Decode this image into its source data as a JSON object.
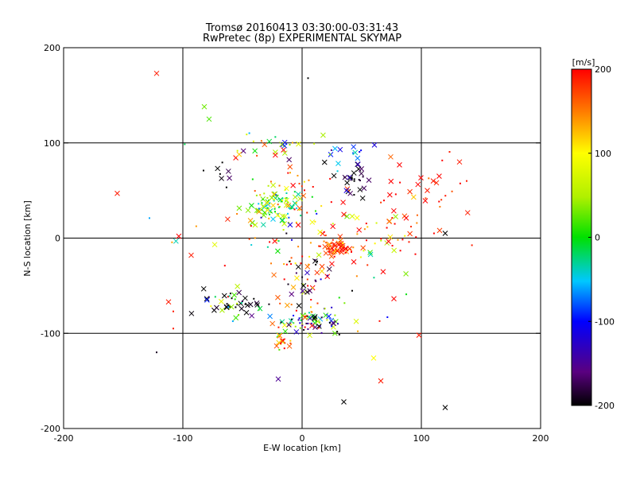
{
  "chart_data": {
    "type": "scatter",
    "title": "Tromsø 20160413 03:30:00-03:31:43",
    "subtitle": "RwPretec (8p) EXPERIMENTAL SKYMAP",
    "xlabel": "E-W location [km]",
    "ylabel": "N-S location [km]",
    "xlim": [
      -200,
      200
    ],
    "ylim": [
      -200,
      200
    ],
    "xticks": [
      "-200",
      "-100",
      "0",
      "100",
      "200"
    ],
    "yticks": [
      "-200",
      "-100",
      "0",
      "100",
      "200"
    ],
    "grid": true,
    "colorbar": {
      "label": "[m/s]",
      "range": [
        -200,
        200
      ],
      "ticks": [
        "200",
        "100",
        "0",
        "-100",
        "-200"
      ]
    },
    "markers": [
      "x",
      "."
    ],
    "clusters": [
      {
        "x": -22,
        "y": 35,
        "sx": 12,
        "sy": 9,
        "v": 0,
        "dv": 40,
        "n": 70
      },
      {
        "x": -22,
        "y": 35,
        "sx": 16,
        "sy": 12,
        "v": 80,
        "dv": 60,
        "n": 25
      },
      {
        "x": 27,
        "y": -10,
        "sx": 8,
        "sy": 5,
        "v": 180,
        "dv": 30,
        "n": 55
      },
      {
        "x": 10,
        "y": -85,
        "sx": 15,
        "sy": 8,
        "v": 30,
        "dv": 90,
        "n": 45
      },
      {
        "x": 15,
        "y": -90,
        "sx": 15,
        "sy": 6,
        "v": -150,
        "dv": 60,
        "n": 30
      },
      {
        "x": -15,
        "y": -108,
        "sx": 5,
        "sy": 4,
        "v": 130,
        "dv": 50,
        "n": 18
      },
      {
        "x": -55,
        "y": -70,
        "sx": 15,
        "sy": 8,
        "v": -200,
        "dv": 20,
        "n": 30
      },
      {
        "x": -60,
        "y": -70,
        "sx": 12,
        "sy": 10,
        "v": 40,
        "dv": 80,
        "n": 20
      },
      {
        "x": 0,
        "y": -45,
        "sx": 15,
        "sy": 25,
        "v": 170,
        "dv": 50,
        "n": 45
      },
      {
        "x": 5,
        "y": -40,
        "sx": 12,
        "sy": 15,
        "v": -190,
        "dv": 30,
        "n": 20
      },
      {
        "x": 42,
        "y": 62,
        "sx": 6,
        "sy": 8,
        "v": -200,
        "dv": 20,
        "n": 25
      },
      {
        "x": 42,
        "y": 85,
        "sx": 6,
        "sy": 8,
        "v": -110,
        "dv": 30,
        "n": 15
      },
      {
        "x": -30,
        "y": 95,
        "sx": 25,
        "sy": 8,
        "v": 50,
        "dv": 120,
        "n": 30
      },
      {
        "x": -65,
        "y": 70,
        "sx": 8,
        "sy": 8,
        "v": -200,
        "dv": 20,
        "n": 8
      },
      {
        "x": 95,
        "y": 35,
        "sx": 20,
        "sy": 25,
        "v": 190,
        "dv": 30,
        "n": 35
      },
      {
        "x": 65,
        "y": 5,
        "sx": 25,
        "sy": 12,
        "v": 160,
        "dv": 70,
        "n": 40
      },
      {
        "x": -10,
        "y": 60,
        "sx": 15,
        "sy": 8,
        "v": 170,
        "dv": 40,
        "n": 15
      },
      {
        "x": 20,
        "y": 30,
        "sx": 20,
        "sy": 20,
        "v": 100,
        "dv": 120,
        "n": 20
      },
      {
        "x": -40,
        "y": 0,
        "sx": 25,
        "sy": 15,
        "v": 100,
        "dv": 120,
        "n": 20
      },
      {
        "x": 60,
        "y": -40,
        "sx": 20,
        "sy": 20,
        "v": 60,
        "dv": 120,
        "n": 15
      }
    ],
    "outliers": [
      {
        "x": -122,
        "y": 173,
        "v": 190,
        "m": "x"
      },
      {
        "x": -155,
        "y": 47,
        "v": 190,
        "m": "x"
      },
      {
        "x": -128,
        "y": 21,
        "v": -60,
        "m": "."
      },
      {
        "x": -82,
        "y": 138,
        "v": 30,
        "m": "x"
      },
      {
        "x": -78,
        "y": 125,
        "v": 20,
        "m": "x"
      },
      {
        "x": 5,
        "y": 168,
        "v": -200,
        "m": "."
      },
      {
        "x": 132,
        "y": 80,
        "v": 190,
        "m": "x"
      },
      {
        "x": 138,
        "y": 60,
        "v": 190,
        "m": "."
      },
      {
        "x": -93,
        "y": -18,
        "v": 190,
        "m": "x"
      },
      {
        "x": -112,
        "y": -67,
        "v": 190,
        "m": "x"
      },
      {
        "x": -108,
        "y": -77,
        "v": 190,
        "m": "."
      },
      {
        "x": -108,
        "y": -95,
        "v": 190,
        "m": "."
      },
      {
        "x": -122,
        "y": -120,
        "v": -190,
        "m": "."
      },
      {
        "x": -20,
        "y": -148,
        "v": -150,
        "m": "x"
      },
      {
        "x": 35,
        "y": -172,
        "v": -200,
        "m": "x"
      },
      {
        "x": 120,
        "y": -178,
        "v": -200,
        "m": "x"
      },
      {
        "x": 60,
        "y": -126,
        "v": 100,
        "m": "x"
      },
      {
        "x": 66,
        "y": -150,
        "v": 190,
        "m": "x"
      },
      {
        "x": 98,
        "y": -102,
        "v": 190,
        "m": "x"
      },
      {
        "x": 120,
        "y": 5,
        "v": -200,
        "m": "x"
      },
      {
        "x": 105,
        "y": 50,
        "v": 190,
        "m": "x"
      },
      {
        "x": 110,
        "y": 60,
        "v": 190,
        "m": "x"
      }
    ]
  }
}
